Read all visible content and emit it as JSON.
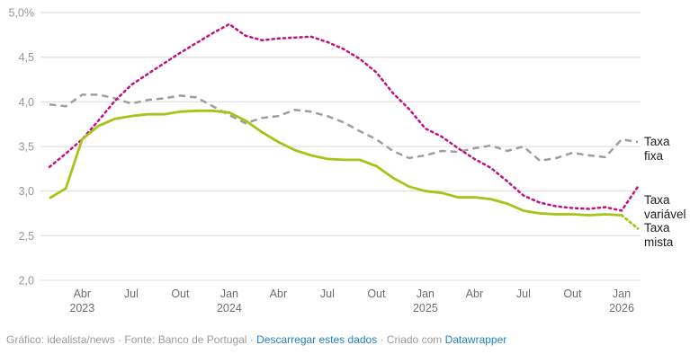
{
  "chart_data": {
    "type": "line",
    "title": "",
    "xlabel": "",
    "ylabel": "",
    "ylim": [
      2.0,
      5.0
    ],
    "grid": true,
    "legend_position": "right-end-labels",
    "x": [
      "Fev 2023",
      "Mar 2023",
      "Abr 2023",
      "Mai 2023",
      "Jun 2023",
      "Jul 2023",
      "Ago 2023",
      "Set 2023",
      "Out 2023",
      "Nov 2023",
      "Dez 2023",
      "Jan 2024",
      "Fev 2024",
      "Mar 2024",
      "Abr 2024",
      "Mai 2024",
      "Jun 2024",
      "Jul 2024",
      "Ago 2024",
      "Set 2024",
      "Out 2024",
      "Nov 2024",
      "Dez 2024",
      "Jan 2025",
      "Fev 2025",
      "Mar 2025",
      "Abr 2025",
      "Mai 2025",
      "Jun 2025",
      "Jul 2025",
      "Ago 2025",
      "Set 2025",
      "Out 2025",
      "Nov 2025",
      "Dez 2025",
      "Jan 2026",
      "Fev 2026"
    ],
    "x_ticks": [
      {
        "index": 2,
        "month": "Abr",
        "year": "2023"
      },
      {
        "index": 5,
        "month": "Jul"
      },
      {
        "index": 8,
        "month": "Out"
      },
      {
        "index": 11,
        "month": "Jan",
        "year": "2024"
      },
      {
        "index": 14,
        "month": "Abr"
      },
      {
        "index": 17,
        "month": "Jul"
      },
      {
        "index": 20,
        "month": "Out"
      },
      {
        "index": 23,
        "month": "Jan",
        "year": "2025"
      },
      {
        "index": 26,
        "month": "Abr"
      },
      {
        "index": 29,
        "month": "Jul"
      },
      {
        "index": 32,
        "month": "Out"
      },
      {
        "index": 35,
        "month": "Jan",
        "year": "2026"
      }
    ],
    "y_ticks": [
      {
        "v": 5.0,
        "label": "5,0%"
      },
      {
        "v": 4.5,
        "label": "4,5"
      },
      {
        "v": 4.0,
        "label": "4,0"
      },
      {
        "v": 3.5,
        "label": "3,5"
      },
      {
        "v": 3.0,
        "label": "3,0"
      },
      {
        "v": 2.5,
        "label": "2,5"
      },
      {
        "v": 2.0,
        "label": "2,0"
      }
    ],
    "series": [
      {
        "id": "fixa",
        "name": "Taxa fixa",
        "color": "#9e9e9e",
        "style": "dashed",
        "values": [
          3.97,
          3.95,
          4.08,
          4.08,
          4.04,
          3.98,
          4.02,
          4.04,
          4.07,
          4.05,
          3.95,
          3.85,
          3.76,
          3.82,
          3.84,
          3.91,
          3.89,
          3.84,
          3.77,
          3.67,
          3.58,
          3.45,
          3.37,
          3.4,
          3.45,
          3.44,
          3.48,
          3.51,
          3.45,
          3.5,
          3.34,
          3.37,
          3.43,
          3.4,
          3.38,
          3.58,
          3.55
        ]
      },
      {
        "id": "variavel",
        "name": "Taxa variável",
        "color": "#c2117c",
        "style": "dotted",
        "values": [
          3.27,
          3.42,
          3.58,
          3.79,
          4.01,
          4.19,
          4.31,
          4.43,
          4.55,
          4.66,
          4.77,
          4.87,
          4.74,
          4.69,
          4.71,
          4.72,
          4.73,
          4.67,
          4.59,
          4.48,
          4.33,
          4.1,
          3.92,
          3.7,
          3.61,
          3.48,
          3.36,
          3.26,
          3.11,
          2.95,
          2.87,
          2.83,
          2.81,
          2.8,
          2.82,
          2.78,
          3.05
        ]
      },
      {
        "id": "mista",
        "name": "Taxa mista",
        "color": "#a9c217",
        "style": "solid",
        "tail_dotted": true,
        "values": [
          2.92,
          3.03,
          3.58,
          3.73,
          3.81,
          3.84,
          3.86,
          3.86,
          3.89,
          3.9,
          3.9,
          3.88,
          3.79,
          3.66,
          3.55,
          3.46,
          3.4,
          3.36,
          3.35,
          3.35,
          3.28,
          3.15,
          3.05,
          3.0,
          2.98,
          2.93,
          2.93,
          2.91,
          2.86,
          2.78,
          2.75,
          2.74,
          2.74,
          2.73,
          2.74,
          2.73,
          2.58
        ]
      }
    ]
  },
  "footer": {
    "prefix": "Gráfico: idealista/news · Fonte: Banco de Portugal · ",
    "download_link": "Descarregar estes dados",
    "separator": " · Criado com ",
    "datawrapper_link": "Datawrapper"
  },
  "colors": {
    "taxa_fixa": "#9e9e9e",
    "taxa_variavel": "#c2117c",
    "taxa_mista": "#a9c217",
    "gridline": "#dadada",
    "y_tick_text": "#979797",
    "x_tick_text": "#6e6e6e",
    "series_label_text": "#1d1d1d",
    "footer_text": "#9b9b9b",
    "footer_link": "#2181bd"
  }
}
